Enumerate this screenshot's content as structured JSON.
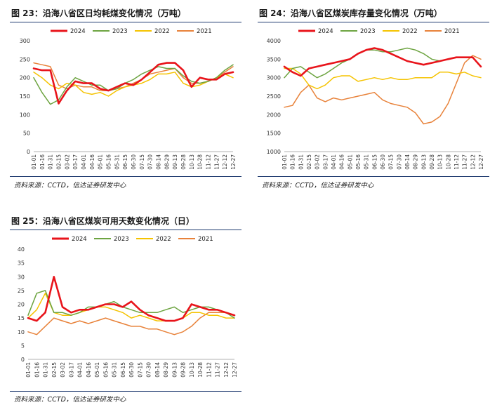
{
  "colors": {
    "s2024": "#e8141b",
    "s2023": "#6da441",
    "s2022": "#f5c300",
    "s2021": "#e8823a"
  },
  "panels": [
    {
      "title": "图 23：沿海八省区日均耗煤变化情况（万吨）",
      "source": "资料来源：CCTD，信达证券研发中心"
    },
    {
      "title": "图 24：沿海八省区煤炭库存量变化情况（万吨）",
      "source": "资料来源：CCTD，信达证券研发中心"
    },
    {
      "title": "图 25：沿海八省区煤炭可用天数变化情况（日）",
      "source": "资料来源：CCTD，信达证券研发中心"
    }
  ],
  "chart_data": [
    {
      "type": "line",
      "ylim": [
        0,
        300
      ],
      "yticks": [
        0,
        50,
        100,
        150,
        200,
        250,
        300
      ],
      "xticks": [
        "01-01",
        "01-16",
        "01-31",
        "02-15",
        "03-02",
        "03-17",
        "04-01",
        "04-16",
        "05-01",
        "05-16",
        "05-31",
        "06-15",
        "06-30",
        "07-15",
        "07-30",
        "08-14",
        "08-29",
        "09-13",
        "09-28",
        "10-13",
        "10-28",
        "11-12",
        "11-27",
        "12-12",
        "12-27"
      ],
      "legend": [
        "2024",
        "2023",
        "2022",
        "2021"
      ],
      "legend_position": "top",
      "series": [
        {
          "name": "2024",
          "color": "#e8141b",
          "width": 2.6,
          "end_index": 24,
          "values": [
            225,
            220,
            220,
            130,
            165,
            190,
            185,
            185,
            170,
            165,
            175,
            185,
            180,
            195,
            215,
            235,
            240,
            240,
            220,
            175,
            200,
            195,
            195,
            210,
            215
          ]
        },
        {
          "name": "2023",
          "color": "#6da441",
          "width": 1.5,
          "end_index": 24,
          "values": [
            200,
            160,
            128,
            140,
            175,
            200,
            190,
            180,
            180,
            165,
            170,
            185,
            195,
            210,
            220,
            230,
            225,
            225,
            205,
            190,
            185,
            190,
            200,
            220,
            235
          ]
        },
        {
          "name": "2022",
          "color": "#f5c300",
          "width": 1.5,
          "end_index": 24,
          "values": [
            215,
            200,
            180,
            170,
            185,
            180,
            160,
            155,
            160,
            150,
            165,
            175,
            180,
            185,
            195,
            210,
            210,
            215,
            185,
            175,
            180,
            190,
            200,
            210,
            200
          ]
        },
        {
          "name": "2021",
          "color": "#e8823a",
          "width": 1.5,
          "end_index": 24,
          "values": [
            240,
            235,
            230,
            180,
            170,
            180,
            175,
            175,
            165,
            165,
            170,
            175,
            185,
            195,
            210,
            215,
            220,
            225,
            200,
            185,
            185,
            190,
            200,
            215,
            230
          ]
        }
      ]
    },
    {
      "type": "line",
      "ylim": [
        1000,
        4000
      ],
      "yticks": [
        1000,
        1500,
        2000,
        2500,
        3000,
        3500,
        4000
      ],
      "xticks": [
        "01-01",
        "01-16",
        "01-31",
        "02-15",
        "03-02",
        "03-17",
        "04-01",
        "04-16",
        "05-01",
        "05-16",
        "05-31",
        "06-15",
        "06-30",
        "07-15",
        "07-30",
        "08-14",
        "08-29",
        "09-13",
        "09-28",
        "10-13",
        "10-28",
        "11-12",
        "11-27",
        "12-12",
        "12-27"
      ],
      "legend": [
        "2024",
        "2023",
        "2022",
        "2021"
      ],
      "legend_position": "top",
      "series": [
        {
          "name": "2024",
          "color": "#e8141b",
          "width": 2.6,
          "end_index": 24,
          "values": [
            3300,
            3150,
            3050,
            3250,
            3300,
            3350,
            3400,
            3450,
            3500,
            3650,
            3750,
            3800,
            3750,
            3650,
            3550,
            3450,
            3400,
            3350,
            3400,
            3450,
            3500,
            3550,
            3550,
            3550,
            3300
          ]
        },
        {
          "name": "2023",
          "color": "#6da441",
          "width": 1.5,
          "end_index": 24,
          "values": [
            3000,
            3250,
            3300,
            3150,
            3000,
            3100,
            3250,
            3400,
            3500,
            3650,
            3750,
            3750,
            3700,
            3700,
            3750,
            3800,
            3750,
            3650,
            3500,
            3450,
            3500,
            3550,
            3550,
            3550,
            3300
          ]
        },
        {
          "name": "2022",
          "color": "#f5c300",
          "width": 1.5,
          "end_index": 24,
          "values": [
            3250,
            3250,
            3100,
            2800,
            2700,
            2800,
            3000,
            3050,
            3050,
            2900,
            2950,
            3000,
            2950,
            3000,
            2950,
            2950,
            3000,
            3000,
            3000,
            3150,
            3150,
            3100,
            3150,
            3050,
            3000
          ]
        },
        {
          "name": "2021",
          "color": "#e8823a",
          "width": 1.5,
          "end_index": 24,
          "values": [
            2200,
            2250,
            2600,
            2800,
            2450,
            2350,
            2450,
            2400,
            2450,
            2500,
            2550,
            2600,
            2400,
            2300,
            2250,
            2200,
            2050,
            1750,
            1800,
            1950,
            2300,
            2850,
            3400,
            3600,
            3500
          ]
        }
      ]
    },
    {
      "type": "line",
      "ylim": [
        0,
        40
      ],
      "yticks": [
        0,
        5,
        10,
        15,
        20,
        25,
        30,
        35,
        40
      ],
      "xticks": [
        "01-01",
        "01-16",
        "01-31",
        "02-15",
        "03-02",
        "03-17",
        "04-01",
        "04-16",
        "05-01",
        "05-16",
        "05-31",
        "06-15",
        "06-30",
        "07-15",
        "07-30",
        "08-14",
        "08-29",
        "09-13",
        "09-28",
        "10-13",
        "10-28",
        "11-12",
        "11-27",
        "12-12",
        "12-27"
      ],
      "legend": [
        "2024",
        "2023",
        "2022",
        "2021"
      ],
      "legend_position": "top",
      "series": [
        {
          "name": "2024",
          "color": "#e8141b",
          "width": 2.6,
          "end_index": 24,
          "values": [
            15,
            14,
            17,
            30,
            19,
            17,
            18,
            18,
            19,
            20,
            20,
            19,
            21,
            18,
            16,
            15,
            14,
            14,
            15,
            20,
            19,
            18,
            18,
            17,
            16
          ]
        },
        {
          "name": "2023",
          "color": "#6da441",
          "width": 1.5,
          "end_index": 24,
          "values": [
            16,
            24,
            25,
            17,
            17,
            16,
            17,
            19,
            19,
            20,
            21,
            19,
            18,
            17,
            17,
            17,
            18,
            19,
            17,
            18,
            19,
            19,
            18,
            17,
            15
          ]
        },
        {
          "name": "2022",
          "color": "#f5c300",
          "width": 1.5,
          "end_index": 24,
          "values": [
            15,
            18,
            24,
            17,
            16,
            16,
            17,
            18,
            19,
            19,
            18,
            17,
            15,
            16,
            15,
            14,
            14,
            14,
            15,
            17,
            17,
            16,
            16,
            15,
            15
          ]
        },
        {
          "name": "2021",
          "color": "#e8823a",
          "width": 1.5,
          "end_index": 24,
          "values": [
            10,
            9,
            12,
            15,
            14,
            13,
            14,
            13,
            14,
            15,
            14,
            13,
            12,
            12,
            11,
            11,
            10,
            9,
            10,
            12,
            15,
            17,
            17,
            17,
            16
          ]
        }
      ]
    }
  ]
}
